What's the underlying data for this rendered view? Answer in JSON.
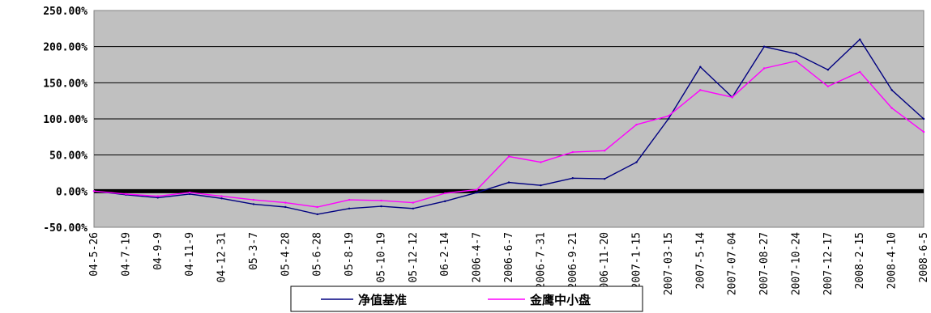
{
  "chart_data": {
    "type": "line",
    "title": "",
    "xlabel": "",
    "ylabel": "",
    "ylim": [
      -50,
      250
    ],
    "y_ticks": [
      "250.00%",
      "200.00%",
      "150.00%",
      "100.00%",
      "50.00%",
      "0.00%",
      "-50.00%"
    ],
    "y_tick_values": [
      250,
      200,
      150,
      100,
      50,
      0,
      -50
    ],
    "x_ticks": [
      "04-5-26",
      "04-7-19",
      "04-9-9",
      "04-11-9",
      "04-12-31",
      "05-3-7",
      "05-4-28",
      "05-6-28",
      "05-8-19",
      "05-10-19",
      "05-12-12",
      "06-2-14",
      "2006-4-7",
      "2006-6-7",
      "2006-7-31",
      "2006-9-21",
      "2006-11-20",
      "2007-1-15",
      "2007-03-15",
      "2007-5-14",
      "2007-07-04",
      "2007-08-27",
      "2007-10-24",
      "2007-12-17",
      "2008-2-15",
      "2008-4-10",
      "2008-6-5"
    ],
    "grid": true,
    "background": "#c0c0c0",
    "legend_position": "bottom",
    "series": [
      {
        "name": "净值基准",
        "color": "#000080",
        "values": [
          0,
          -5,
          -9,
          -4,
          -10,
          -18,
          -22,
          -32,
          -24,
          -21,
          -24,
          -14,
          -2,
          12,
          8,
          18,
          17,
          40,
          100,
          172,
          130,
          200,
          190,
          168,
          210,
          140,
          100
        ]
      },
      {
        "name": "金鹰中小盘",
        "color": "#ff00ff",
        "values": [
          0,
          -4,
          -7,
          -2,
          -7,
          -12,
          -16,
          -22,
          -12,
          -13,
          -16,
          -3,
          2,
          48,
          40,
          54,
          56,
          92,
          104,
          140,
          130,
          170,
          180,
          145,
          165,
          115,
          82
        ]
      }
    ]
  }
}
